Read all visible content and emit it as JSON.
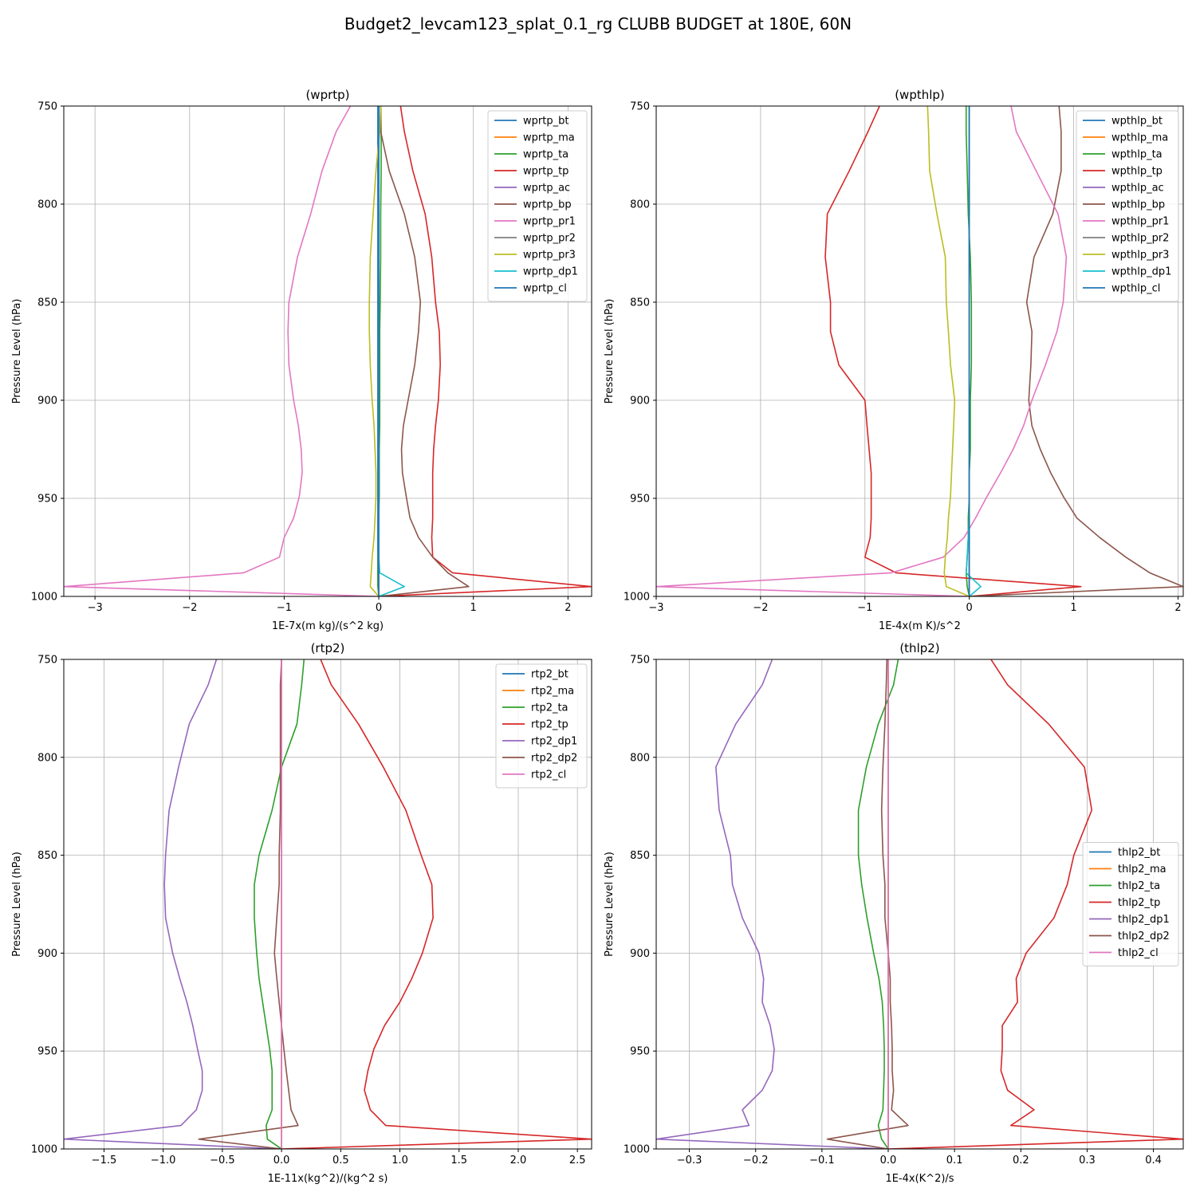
{
  "figure": {
    "suptitle": "Budget2_levcam123_splat_0.1_rg CLUBB BUDGET at 180E, 60N"
  },
  "chart_data": [
    {
      "type": "line",
      "title": "(wprtp)",
      "xlabel": "1E-7x(m kg)/(s^2 kg)",
      "ylabel": "Pressure Level (hPa)",
      "xlim": [
        -3.33,
        2.25
      ],
      "ylim": [
        1000,
        750
      ],
      "y_inverted": true,
      "xticks": [
        -3,
        -2,
        -1,
        0,
        1,
        2
      ],
      "yticks": [
        750,
        800,
        850,
        900,
        950,
        1000
      ],
      "grid": true,
      "legend_position": "top-right",
      "y": [
        750,
        763,
        783,
        805,
        827,
        850,
        865,
        882,
        900,
        913,
        925,
        937,
        949,
        960,
        970,
        980,
        988,
        995,
        1000
      ],
      "series": [
        {
          "name": "wprtp_bt",
          "color": "#1f77b4",
          "values": [
            -0.01,
            -0.01,
            -0.01,
            -0.01,
            -0.01,
            -0.01,
            -0.01,
            -0.01,
            -0.01,
            -0.01,
            -0.01,
            -0.01,
            -0.01,
            -0.01,
            -0.01,
            -0.01,
            -0.01,
            -0.005,
            0
          ]
        },
        {
          "name": "wprtp_ma",
          "color": "#ff7f0e",
          "values": [
            0,
            0,
            0,
            0,
            0,
            0,
            0,
            0,
            0,
            0,
            0,
            0,
            0,
            0,
            0,
            0,
            0,
            0,
            0
          ]
        },
        {
          "name": "wprtp_ta",
          "color": "#2ca02c",
          "values": [
            0.02,
            0.025,
            0.025,
            0.02,
            0.02,
            0.015,
            0.01,
            0.01,
            0.01,
            0.01,
            0.005,
            0.005,
            0.005,
            0.0,
            0.0,
            -0.005,
            -0.01,
            -0.01,
            0
          ]
        },
        {
          "name": "wprtp_tp",
          "color": "#d62728",
          "values": [
            0.23,
            0.27,
            0.36,
            0.49,
            0.56,
            0.6,
            0.64,
            0.65,
            0.63,
            0.6,
            0.58,
            0.57,
            0.57,
            0.57,
            0.56,
            0.57,
            0.78,
            2.25,
            0
          ]
        },
        {
          "name": "wprtp_ac",
          "color": "#9467bd",
          "values": [
            0,
            0,
            0,
            0,
            0,
            0,
            0,
            0,
            0,
            0,
            0,
            0,
            0,
            0,
            0,
            0,
            0,
            0,
            0
          ]
        },
        {
          "name": "wprtp_bp",
          "color": "#8c564b",
          "values": [
            0.02,
            0.02,
            0.11,
            0.27,
            0.38,
            0.44,
            0.42,
            0.38,
            0.31,
            0.26,
            0.24,
            0.25,
            0.29,
            0.33,
            0.42,
            0.57,
            0.73,
            0.95,
            0
          ]
        },
        {
          "name": "wprtp_pr1",
          "color": "#e377c2",
          "values": [
            -0.3,
            -0.45,
            -0.6,
            -0.72,
            -0.86,
            -0.95,
            -0.96,
            -0.95,
            -0.9,
            -0.85,
            -0.82,
            -0.81,
            -0.84,
            -0.9,
            -1.0,
            -1.05,
            -1.43,
            -3.33,
            0
          ]
        },
        {
          "name": "wprtp_pr2",
          "color": "#7f7f7f",
          "values": [
            0,
            0,
            0,
            0,
            0,
            0,
            0,
            0,
            0,
            0,
            0,
            0,
            0,
            0,
            0,
            0,
            0,
            0,
            0
          ]
        },
        {
          "name": "wprtp_pr3",
          "color": "#bcbd22",
          "values": [
            0.02,
            0.01,
            -0.03,
            -0.06,
            -0.09,
            -0.1,
            -0.1,
            -0.09,
            -0.07,
            -0.05,
            -0.04,
            -0.03,
            -0.03,
            -0.04,
            -0.05,
            -0.07,
            -0.08,
            -0.09,
            0
          ]
        },
        {
          "name": "wprtp_dp1",
          "color": "#17becf",
          "values": [
            0,
            0,
            0,
            0,
            0,
            0,
            0,
            0,
            0,
            0,
            0,
            0,
            0,
            0,
            0,
            0,
            0.01,
            0.27,
            0
          ]
        },
        {
          "name": "wprtp_cl",
          "color": "#1f77b4",
          "values": [
            0,
            0,
            0,
            0,
            0,
            0,
            0,
            0,
            0,
            0,
            0,
            0,
            0,
            0,
            0,
            0,
            0,
            0,
            0
          ]
        }
      ]
    },
    {
      "type": "line",
      "title": "(wpthlp)",
      "xlabel": "1E-4x(m K)/s^2",
      "ylabel": "Pressure Level (hPa)",
      "xlim": [
        -3.0,
        2.05
      ],
      "ylim": [
        1000,
        750
      ],
      "y_inverted": true,
      "xticks": [
        -3,
        -2,
        -1,
        0,
        1,
        2
      ],
      "yticks": [
        750,
        800,
        850,
        900,
        950,
        1000
      ],
      "grid": true,
      "legend_position": "top-right",
      "y": [
        750,
        763,
        783,
        805,
        827,
        850,
        865,
        882,
        900,
        913,
        925,
        937,
        949,
        960,
        970,
        980,
        988,
        995,
        1000
      ],
      "series": [
        {
          "name": "wpthlp_bt",
          "color": "#1f77b4",
          "values": [
            0,
            0,
            0,
            0,
            0,
            0,
            0,
            0,
            0,
            0,
            0,
            0,
            0,
            0,
            0,
            0,
            0,
            0,
            0
          ]
        },
        {
          "name": "wpthlp_ma",
          "color": "#ff7f0e",
          "values": [
            0,
            0,
            0,
            0,
            0,
            0,
            0,
            0,
            0,
            0,
            0,
            0,
            0,
            0,
            0,
            0,
            0,
            0,
            0
          ]
        },
        {
          "name": "wpthlp_ta",
          "color": "#2ca02c",
          "values": [
            -0.03,
            -0.03,
            -0.02,
            -0.01,
            0.01,
            0.02,
            0.02,
            0.02,
            0.01,
            0.01,
            0.01,
            0.0,
            0.0,
            -0.01,
            -0.01,
            -0.02,
            -0.03,
            -0.02,
            0
          ]
        },
        {
          "name": "wpthlp_tp",
          "color": "#d62728",
          "values": [
            -0.86,
            -0.97,
            -1.15,
            -1.36,
            -1.38,
            -1.33,
            -1.33,
            -1.25,
            -1.0,
            -0.98,
            -0.96,
            -0.94,
            -0.94,
            -0.94,
            -0.95,
            -1.0,
            -0.7,
            1.07,
            0
          ]
        },
        {
          "name": "wpthlp_ac",
          "color": "#9467bd",
          "values": [
            0,
            0,
            0,
            0,
            0,
            0,
            0,
            0,
            0,
            0,
            0,
            0,
            0,
            0,
            0,
            0,
            0,
            0,
            0
          ]
        },
        {
          "name": "wpthlp_bp",
          "color": "#8c564b",
          "values": [
            0.86,
            0.88,
            0.88,
            0.8,
            0.62,
            0.55,
            0.6,
            0.59,
            0.57,
            0.6,
            0.68,
            0.78,
            0.9,
            1.03,
            1.25,
            1.5,
            1.73,
            2.05,
            0
          ]
        },
        {
          "name": "wpthlp_pr1",
          "color": "#e377c2",
          "values": [
            0.4,
            0.45,
            0.64,
            0.85,
            0.93,
            0.9,
            0.84,
            0.73,
            0.6,
            0.52,
            0.42,
            0.3,
            0.17,
            0.06,
            -0.05,
            -0.25,
            -0.75,
            -3.0,
            0
          ]
        },
        {
          "name": "wpthlp_pr2",
          "color": "#7f7f7f",
          "values": [
            0,
            0,
            0,
            0,
            0,
            0,
            0,
            0,
            0,
            0,
            0,
            0,
            0,
            0,
            0,
            0,
            0,
            0,
            0
          ]
        },
        {
          "name": "wpthlp_pr3",
          "color": "#bcbd22",
          "values": [
            -0.4,
            -0.39,
            -0.38,
            -0.31,
            -0.23,
            -0.22,
            -0.2,
            -0.18,
            -0.14,
            -0.15,
            -0.16,
            -0.17,
            -0.18,
            -0.2,
            -0.21,
            -0.23,
            -0.24,
            -0.22,
            0
          ]
        },
        {
          "name": "wpthlp_dp1",
          "color": "#17becf",
          "values": [
            0,
            0,
            0,
            0,
            0,
            0,
            0,
            0,
            0,
            0,
            0,
            0,
            0,
            0,
            -0.01,
            -0.02,
            -0.03,
            0.11,
            0
          ]
        },
        {
          "name": "wpthlp_cl",
          "color": "#1f77b4",
          "values": [
            0,
            0,
            0,
            0,
            0,
            0,
            0,
            0,
            0,
            0,
            0,
            0,
            0,
            0,
            0,
            0,
            0,
            0,
            0
          ]
        }
      ]
    },
    {
      "type": "line",
      "title": "(rtp2)",
      "xlabel": "1E-11x(kg^2)/(kg^2 s)",
      "ylabel": "Pressure Level (hPa)",
      "xlim": [
        -1.84,
        2.62
      ],
      "ylim": [
        1000,
        750
      ],
      "y_inverted": true,
      "xticks": [
        -1.5,
        -1.0,
        -0.5,
        0.0,
        0.5,
        1.0,
        1.5,
        2.0,
        2.5
      ],
      "yticks": [
        750,
        800,
        850,
        900,
        950,
        1000
      ],
      "grid": true,
      "legend_position": "top-right",
      "y": [
        750,
        763,
        783,
        805,
        827,
        850,
        865,
        882,
        900,
        913,
        925,
        937,
        949,
        960,
        970,
        980,
        988,
        995,
        1000
      ],
      "series": [
        {
          "name": "rtp2_bt",
          "color": "#1f77b4",
          "values": [
            0,
            0,
            0,
            0,
            0,
            0,
            0,
            0,
            0,
            0,
            0,
            0,
            0,
            0,
            0,
            0,
            0,
            0,
            0
          ]
        },
        {
          "name": "rtp2_ma",
          "color": "#ff7f0e",
          "values": [
            0,
            0,
            0,
            0,
            0,
            0,
            0,
            0,
            0,
            0,
            0,
            0,
            0,
            0,
            0,
            0,
            0,
            0,
            0
          ]
        },
        {
          "name": "rtp2_ta",
          "color": "#2ca02c",
          "values": [
            0.19,
            0.17,
            0.13,
            0.0,
            -0.08,
            -0.19,
            -0.23,
            -0.23,
            -0.21,
            -0.19,
            -0.16,
            -0.13,
            -0.1,
            -0.08,
            -0.08,
            -0.08,
            -0.13,
            -0.12,
            0
          ]
        },
        {
          "name": "rtp2_tp",
          "color": "#d62728",
          "values": [
            0.33,
            0.42,
            0.65,
            0.86,
            1.05,
            1.18,
            1.27,
            1.28,
            1.19,
            1.1,
            1.0,
            0.87,
            0.78,
            0.73,
            0.7,
            0.75,
            0.88,
            2.62,
            0
          ]
        },
        {
          "name": "rtp2_dp1",
          "color": "#9467bd",
          "values": [
            -0.55,
            -0.62,
            -0.78,
            -0.87,
            -0.95,
            -0.98,
            -0.99,
            -0.98,
            -0.92,
            -0.86,
            -0.8,
            -0.75,
            -0.71,
            -0.67,
            -0.67,
            -0.72,
            -0.85,
            -1.84,
            0
          ]
        },
        {
          "name": "rtp2_dp2",
          "color": "#8c564b",
          "values": [
            0.0,
            -0.01,
            -0.01,
            -0.01,
            -0.01,
            -0.02,
            -0.02,
            -0.04,
            -0.06,
            -0.04,
            -0.02,
            0.0,
            0.02,
            0.04,
            0.06,
            0.08,
            0.14,
            -0.7,
            0
          ]
        },
        {
          "name": "rtp2_cl",
          "color": "#e377c2",
          "values": [
            0,
            0,
            0,
            0,
            0,
            0,
            0,
            0,
            0,
            0,
            0,
            0,
            0,
            0,
            0,
            0,
            0,
            0,
            0
          ]
        }
      ]
    },
    {
      "type": "line",
      "title": "(thlp2)",
      "xlabel": "1E-4x(K^2)/s",
      "ylabel": "Pressure Level (hPa)",
      "xlim": [
        -0.35,
        0.445
      ],
      "ylim": [
        1000,
        750
      ],
      "y_inverted": true,
      "xticks": [
        -0.3,
        -0.2,
        -0.1,
        0.0,
        0.1,
        0.2,
        0.3,
        0.4
      ],
      "yticks": [
        750,
        800,
        850,
        900,
        950,
        1000
      ],
      "grid": true,
      "legend_position": "center-right",
      "y": [
        750,
        763,
        783,
        805,
        827,
        850,
        865,
        882,
        900,
        913,
        925,
        937,
        949,
        960,
        970,
        980,
        988,
        995,
        1000
      ],
      "series": [
        {
          "name": "thlp2_bt",
          "color": "#1f77b4",
          "values": [
            0,
            0,
            0,
            0,
            0,
            0,
            0,
            0,
            0,
            0,
            0,
            0,
            0,
            0,
            0,
            0,
            0,
            0,
            0
          ]
        },
        {
          "name": "thlp2_ma",
          "color": "#ff7f0e",
          "values": [
            0,
            0,
            0,
            0,
            0,
            0,
            0,
            0,
            0,
            0,
            0,
            0,
            0,
            0,
            0,
            0,
            0,
            0,
            0
          ]
        },
        {
          "name": "thlp2_ta",
          "color": "#2ca02c",
          "values": [
            0.015,
            0.008,
            -0.015,
            -0.033,
            -0.045,
            -0.045,
            -0.04,
            -0.032,
            -0.022,
            -0.014,
            -0.009,
            -0.007,
            -0.006,
            -0.006,
            -0.007,
            -0.008,
            -0.015,
            -0.01,
            0
          ]
        },
        {
          "name": "thlp2_tp",
          "color": "#d62728",
          "values": [
            0.155,
            0.18,
            0.242,
            0.296,
            0.307,
            0.28,
            0.27,
            0.25,
            0.208,
            0.193,
            0.195,
            0.172,
            0.172,
            0.17,
            0.18,
            0.22,
            0.185,
            0.445,
            0
          ]
        },
        {
          "name": "thlp2_dp1",
          "color": "#9467bd",
          "values": [
            -0.175,
            -0.19,
            -0.23,
            -0.26,
            -0.255,
            -0.238,
            -0.235,
            -0.22,
            -0.195,
            -0.188,
            -0.19,
            -0.178,
            -0.172,
            -0.175,
            -0.19,
            -0.22,
            -0.21,
            -0.35,
            0
          ]
        },
        {
          "name": "thlp2_dp2",
          "color": "#8c564b",
          "values": [
            -0.002,
            -0.003,
            -0.005,
            -0.008,
            -0.01,
            -0.008,
            -0.005,
            -0.005,
            0.0,
            0.003,
            0.003,
            0.005,
            0.006,
            0.006,
            0.008,
            0.005,
            0.03,
            -0.092,
            0
          ]
        },
        {
          "name": "thlp2_cl",
          "color": "#e377c2",
          "values": [
            0,
            0,
            0,
            0,
            0,
            0,
            0,
            0,
            0,
            0,
            0,
            0,
            0,
            0,
            0,
            0,
            0,
            0,
            0
          ]
        }
      ]
    }
  ]
}
